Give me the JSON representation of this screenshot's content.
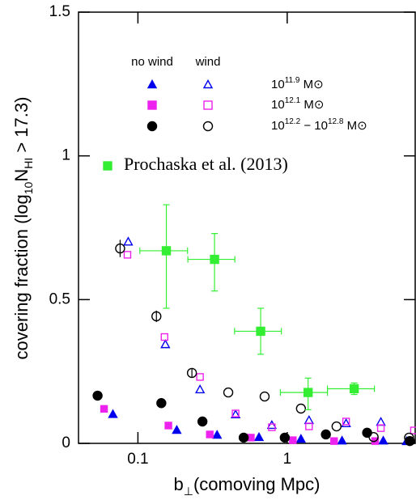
{
  "chart_data": {
    "type": "scatter",
    "xlabel": [
      "b",
      "⊥",
      "(comoving Mpc)"
    ],
    "ylabel": [
      "covering fraction (log",
      "10",
      "N",
      "HI",
      " > 17.3)"
    ],
    "xscale": "log",
    "xlim": [
      0.04,
      7.2
    ],
    "ylim": [
      0,
      1.5
    ],
    "xticks": [
      0.1,
      1
    ],
    "yticks": [
      0,
      0.5,
      1,
      1.5
    ],
    "legend_columns": [
      "no wind",
      "wind"
    ],
    "legend_rows": [
      [
        "10",
        "11.9",
        " M⊙"
      ],
      [
        "10",
        "12.1",
        " M⊙"
      ],
      [
        "10",
        "12.2",
        " − 10",
        "12.8",
        " M⊙"
      ]
    ],
    "series": [
      {
        "marker": "triangle",
        "filled": true,
        "color": "#0000ee",
        "x": [
          0.068,
          0.182,
          0.339,
          0.647,
          1.236,
          2.33,
          4.4,
          6.31
        ],
        "values": [
          0.1,
          0.045,
          0.028,
          0.02,
          0.014,
          0.008,
          0.008,
          0.006
        ]
      },
      {
        "marker": "square",
        "filled": true,
        "color": "#ee22ee",
        "x": [
          0.0593,
          0.16,
          0.303,
          0.571,
          1.091,
          2.06,
          3.88
        ],
        "values": [
          0.12,
          0.062,
          0.031,
          0.02,
          0.011,
          0.008,
          0.008
        ]
      },
      {
        "marker": "circle",
        "filled": true,
        "color": "#000000",
        "x": [
          0.0537,
          0.1435,
          0.2706,
          0.511,
          0.963,
          1.816,
          3.43,
          6.63
        ],
        "values": [
          0.166,
          0.14,
          0.076,
          0.02,
          0.02,
          0.031,
          0.037,
          0.008
        ]
      },
      {
        "marker": "triangle",
        "filled": false,
        "color": "#0000ee",
        "x": [
          0.0861,
          0.1527,
          0.2606,
          0.451,
          0.789,
          1.4,
          2.48,
          4.24
        ],
        "values": [
          0.7,
          0.343,
          0.186,
          0.099,
          0.062,
          0.079,
          0.068,
          0.073
        ]
      },
      {
        "marker": "square",
        "filled": false,
        "color": "#ee22ee",
        "x": [
          0.0851,
          0.1507,
          0.2606,
          0.451,
          0.789,
          1.4,
          2.48,
          4.24,
          7.06
        ],
        "values": [
          0.656,
          0.37,
          0.231,
          0.104,
          0.056,
          0.059,
          0.076,
          0.053,
          0.045
        ]
      },
      {
        "marker": "circle",
        "filled": false,
        "color": "#000000",
        "x": [
          0.076,
          0.133,
          0.23,
          0.403,
          0.706,
          1.236,
          2.14,
          3.79,
          6.55
        ],
        "values": [
          0.678,
          0.442,
          0.245,
          0.177,
          0.163,
          0.121,
          0.059,
          0.022,
          0.02
        ],
        "yerr": [
          0.03,
          0.02,
          0.015,
          0,
          0,
          0,
          0,
          0,
          0
        ]
      },
      {
        "name": "Prochaska et al. (2013)",
        "marker": "square",
        "filled": true,
        "color": "#33ee33",
        "x": [
          0.155,
          0.326,
          0.664,
          1.38,
          2.81
        ],
        "values": [
          0.67,
          0.64,
          0.39,
          0.177,
          0.19
        ],
        "yerr_minus": [
          0.2,
          0.11,
          0.08,
          0.06,
          0.02
        ],
        "yerr_plus": [
          0.16,
          0.09,
          0.08,
          0.05,
          0.02
        ],
        "xerr_minus": [
          0.052,
          0.11,
          0.22,
          0.48,
          0.95
        ],
        "xerr_plus": [
          0.06,
          0.12,
          0.25,
          0.48,
          1.03
        ]
      }
    ]
  }
}
